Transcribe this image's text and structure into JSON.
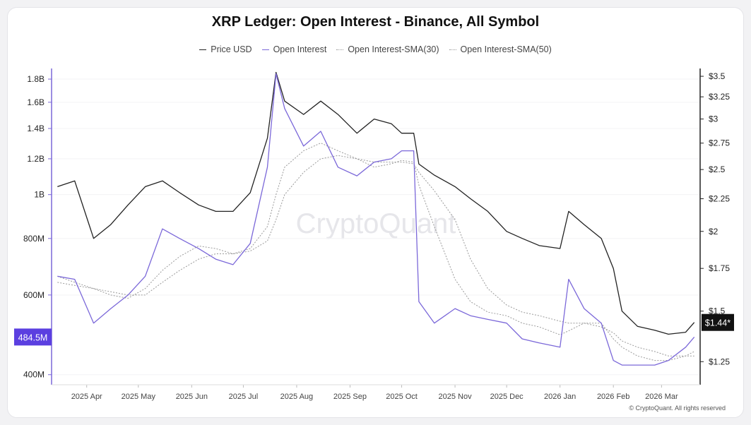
{
  "chart_data": {
    "type": "line",
    "title": "XRP Ledger: Open Interest - Binance, All Symbol",
    "watermark": "CryptoQuant",
    "copyright": "© CryptoQuant. All rights reserved",
    "x_ticks": [
      "2025 Apr",
      "2025 May",
      "2025 Jun",
      "2025 Jul",
      "2025 Aug",
      "2025 Sep",
      "2025 Oct",
      "2025 Nov",
      "2025 Dec",
      "2026 Jan",
      "2026 Feb",
      "2026 Mar"
    ],
    "left_axis": {
      "scale": "log",
      "range": [
        380000000,
        1900000000
      ],
      "ticks": [
        {
          "value": 400000000,
          "label": "400M"
        },
        {
          "value": 600000000,
          "label": "600M"
        },
        {
          "value": 800000000,
          "label": "800M"
        },
        {
          "value": 1000000000,
          "label": "1B"
        },
        {
          "value": 1200000000,
          "label": "1.2B"
        },
        {
          "value": 1400000000,
          "label": "1.4B"
        },
        {
          "value": 1600000000,
          "label": "1.6B"
        },
        {
          "value": 1800000000,
          "label": "1.8B"
        }
      ],
      "current_value": 484500000,
      "current_label": "484.5M"
    },
    "right_axis": {
      "scale": "log",
      "range": [
        1.15,
        3.6
      ],
      "ticks": [
        {
          "value": 1.25,
          "label": "$1.25"
        },
        {
          "value": 1.5,
          "label": "$1.5"
        },
        {
          "value": 1.75,
          "label": "$1.75"
        },
        {
          "value": 2,
          "label": "$2"
        },
        {
          "value": 2.25,
          "label": "$2.25"
        },
        {
          "value": 2.5,
          "label": "$2.5"
        },
        {
          "value": 2.75,
          "label": "$2.75"
        },
        {
          "value": 3,
          "label": "$3"
        },
        {
          "value": 3.25,
          "label": "$3.25"
        },
        {
          "value": 3.5,
          "label": "$3.5"
        }
      ],
      "current_value": 1.44,
      "current_label": "$1.44*"
    },
    "x": [
      "2025-03-15",
      "2025-03-25",
      "2025-04-05",
      "2025-04-15",
      "2025-04-25",
      "2025-05-05",
      "2025-05-15",
      "2025-05-25",
      "2025-06-05",
      "2025-06-15",
      "2025-06-25",
      "2025-07-05",
      "2025-07-15",
      "2025-07-20",
      "2025-07-25",
      "2025-08-05",
      "2025-08-15",
      "2025-08-25",
      "2025-09-05",
      "2025-09-15",
      "2025-09-25",
      "2025-10-01",
      "2025-10-08",
      "2025-10-11",
      "2025-10-20",
      "2025-11-01",
      "2025-11-10",
      "2025-11-20",
      "2025-12-01",
      "2025-12-10",
      "2025-12-20",
      "2026-01-01",
      "2026-01-06",
      "2026-01-15",
      "2026-01-25",
      "2026-02-01",
      "2026-02-06",
      "2026-02-15",
      "2026-02-25",
      "2026-03-05",
      "2026-03-15",
      "2026-03-20"
    ],
    "series": [
      {
        "name": "Price USD",
        "color": "#222222",
        "dash": "solid",
        "axis": "right",
        "values": [
          2.35,
          2.4,
          1.95,
          2.05,
          2.2,
          2.35,
          2.4,
          2.3,
          2.2,
          2.15,
          2.15,
          2.3,
          2.8,
          3.55,
          3.2,
          3.05,
          3.2,
          3.05,
          2.85,
          3.0,
          2.95,
          2.85,
          2.85,
          2.55,
          2.45,
          2.35,
          2.25,
          2.15,
          2.0,
          1.95,
          1.9,
          1.88,
          2.15,
          2.05,
          1.95,
          1.75,
          1.5,
          1.42,
          1.4,
          1.38,
          1.39,
          1.44
        ]
      },
      {
        "name": "Open Interest",
        "color": "#7b68d9",
        "dash": "solid",
        "axis": "left",
        "values": [
          660000000,
          650000000,
          520000000,
          560000000,
          600000000,
          660000000,
          840000000,
          800000000,
          760000000,
          720000000,
          700000000,
          780000000,
          1150000000,
          1850000000,
          1550000000,
          1280000000,
          1380000000,
          1150000000,
          1100000000,
          1180000000,
          1200000000,
          1250000000,
          1250000000,
          580000000,
          520000000,
          560000000,
          540000000,
          530000000,
          520000000,
          480000000,
          470000000,
          460000000,
          650000000,
          560000000,
          520000000,
          430000000,
          420000000,
          420000000,
          420000000,
          430000000,
          460000000,
          484500000
        ]
      },
      {
        "name": "Open Interest-SMA(30)",
        "color": "#999999",
        "dash": "dotted",
        "axis": "left",
        "values": [
          660000000,
          640000000,
          620000000,
          600000000,
          590000000,
          620000000,
          680000000,
          730000000,
          770000000,
          760000000,
          740000000,
          760000000,
          850000000,
          1000000000,
          1150000000,
          1250000000,
          1300000000,
          1250000000,
          1200000000,
          1150000000,
          1170000000,
          1190000000,
          1180000000,
          1050000000,
          850000000,
          650000000,
          580000000,
          550000000,
          540000000,
          520000000,
          510000000,
          490000000,
          500000000,
          520000000,
          520000000,
          480000000,
          460000000,
          440000000,
          430000000,
          430000000,
          440000000,
          450000000
        ]
      },
      {
        "name": "Open Interest-SMA(50)",
        "color": "#999999",
        "dash": "dotted",
        "axis": "left",
        "values": [
          640000000,
          630000000,
          620000000,
          610000000,
          600000000,
          600000000,
          640000000,
          680000000,
          720000000,
          740000000,
          740000000,
          750000000,
          790000000,
          880000000,
          1000000000,
          1120000000,
          1200000000,
          1220000000,
          1200000000,
          1180000000,
          1180000000,
          1180000000,
          1170000000,
          1120000000,
          1020000000,
          880000000,
          720000000,
          620000000,
          570000000,
          550000000,
          540000000,
          525000000,
          520000000,
          520000000,
          510000000,
          495000000,
          475000000,
          460000000,
          450000000,
          440000000,
          440000000,
          440000000
        ]
      }
    ]
  }
}
